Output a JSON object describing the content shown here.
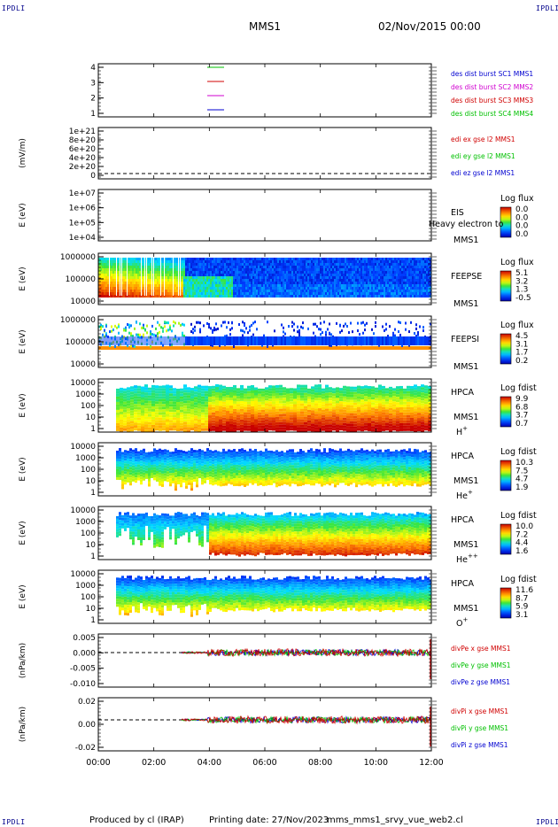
{
  "corner_label": "IPDLI",
  "header": {
    "mission": "MMS1",
    "date": "02/Nov/2015 00:00"
  },
  "footer": {
    "producer": "Produced by cl (IRAP)",
    "printing": "Printing date: 27/Nov/2023",
    "file": "mms_mms1_srvy_vue_web2.cl"
  },
  "colors": {
    "blue": "#0000d0",
    "magenta": "#d000d0",
    "red": "#d00000",
    "green": "#00c000"
  },
  "chart_data": {
    "type": "heatmap",
    "x_ticks": [
      "00:00",
      "02:00",
      "04:00",
      "06:00",
      "08:00",
      "10:00",
      "12:00"
    ],
    "panels": [
      {
        "kind": "burst",
        "ylabel": "",
        "ticks": [
          "4",
          "3",
          "2",
          "1"
        ],
        "legend": [
          {
            "text": "des dist burst SC1 MMS1",
            "color": "#0000d0"
          },
          {
            "text": "des dist burst SC2 MMS2",
            "color": "#d000d0"
          },
          {
            "text": "des dist burst SC3 MMS3",
            "color": "#d00000"
          },
          {
            "text": "des dist burst SC4 MMS4",
            "color": "#00c000"
          }
        ]
      },
      {
        "kind": "line",
        "ylabel": "(mV/m)",
        "ticks": [
          "1e+21",
          "8e+20",
          "6e+20",
          "4e+20",
          "2e+20",
          "0"
        ],
        "legend": [
          {
            "text": "edi ex gse l2 MMS1",
            "color": "#d00000"
          },
          {
            "text": "edi ey gse l2 MMS1",
            "color": "#00c000"
          },
          {
            "text": "edi ez gse l2 MMS1",
            "color": "#0000d0"
          }
        ]
      },
      {
        "kind": "empty-spec",
        "ylabel": "E (eV)",
        "ticks": [
          "1e+07",
          "1e+06",
          "1e+05",
          "1e+04"
        ],
        "name": "EIS",
        "sc": "MMS1",
        "overlay": "Heavy electron to",
        "cbar_title": "Log flux",
        "cbar_ticks": [
          "0.0",
          "0.0",
          "0.0",
          "0.0"
        ]
      },
      {
        "kind": "feeps-e",
        "ylabel": "E (eV)",
        "ticks": [
          "1000000",
          "100000",
          "10000"
        ],
        "name": "FEEPSE",
        "sc": "MMS1",
        "cbar_title": "Log flux",
        "cbar_ticks": [
          "5.1",
          "3.2",
          "1.3",
          "-0.5"
        ]
      },
      {
        "kind": "feeps-i",
        "ylabel": "E (eV)",
        "ticks": [
          "1000000",
          "100000",
          "10000"
        ],
        "name": "FEEPSI",
        "sc": "MMS1",
        "cbar_title": "Log flux",
        "cbar_ticks": [
          "4.5",
          "3.1",
          "1.7",
          "0.2"
        ]
      },
      {
        "kind": "hpca-h",
        "ylabel": "E (eV)",
        "ticks": [
          "10000",
          "1000",
          "100",
          "10",
          "1"
        ],
        "name": "HPCA",
        "sc": "MMS1",
        "species": "H",
        "charge": "+",
        "cbar_title": "Log fdist",
        "cbar_ticks": [
          "9.9",
          "6.8",
          "3.7",
          "0.7"
        ]
      },
      {
        "kind": "hpca-he",
        "ylabel": "E (eV)",
        "ticks": [
          "10000",
          "1000",
          "100",
          "10",
          "1"
        ],
        "name": "HPCA",
        "sc": "MMS1",
        "species": "He",
        "charge": "+",
        "cbar_title": "Log fdist",
        "cbar_ticks": [
          "10.3",
          "7.5",
          "4.7",
          "1.9"
        ]
      },
      {
        "kind": "hpca-hepp",
        "ylabel": "E (eV)",
        "ticks": [
          "10000",
          "1000",
          "100",
          "10",
          "1"
        ],
        "name": "HPCA",
        "sc": "MMS1",
        "species": "He",
        "charge": "++",
        "cbar_title": "Log fdist",
        "cbar_ticks": [
          "10.0",
          "7.2",
          "4.4",
          "1.6"
        ]
      },
      {
        "kind": "hpca-o",
        "ylabel": "E (eV)",
        "ticks": [
          "10000",
          "1000",
          "100",
          "10",
          "1"
        ],
        "name": "HPCA",
        "sc": "MMS1",
        "species": "O",
        "charge": "+",
        "cbar_title": "Log fdist",
        "cbar_ticks": [
          "11.6",
          "8.7",
          "5.9",
          "3.1"
        ]
      },
      {
        "kind": "divpe",
        "ylabel": "(nPa/km)",
        "ticks": [
          "0.005",
          "0.000",
          "-0.005",
          "-0.010"
        ],
        "legend": [
          {
            "text": "divPe x gse MMS1",
            "color": "#d00000"
          },
          {
            "text": "divPe y gse MMS1",
            "color": "#00c000"
          },
          {
            "text": "divPe z gse MMS1",
            "color": "#0000d0"
          }
        ]
      },
      {
        "kind": "divpi",
        "ylabel": "(nPa/km)",
        "ticks": [
          "0.02",
          "0.00",
          "-0.02"
        ],
        "legend": [
          {
            "text": "divPi x gse MMS1",
            "color": "#d00000"
          },
          {
            "text": "divPi y gse MMS1",
            "color": "#00c000"
          },
          {
            "text": "divPi z gse MMS1",
            "color": "#0000d0"
          }
        ]
      }
    ]
  }
}
